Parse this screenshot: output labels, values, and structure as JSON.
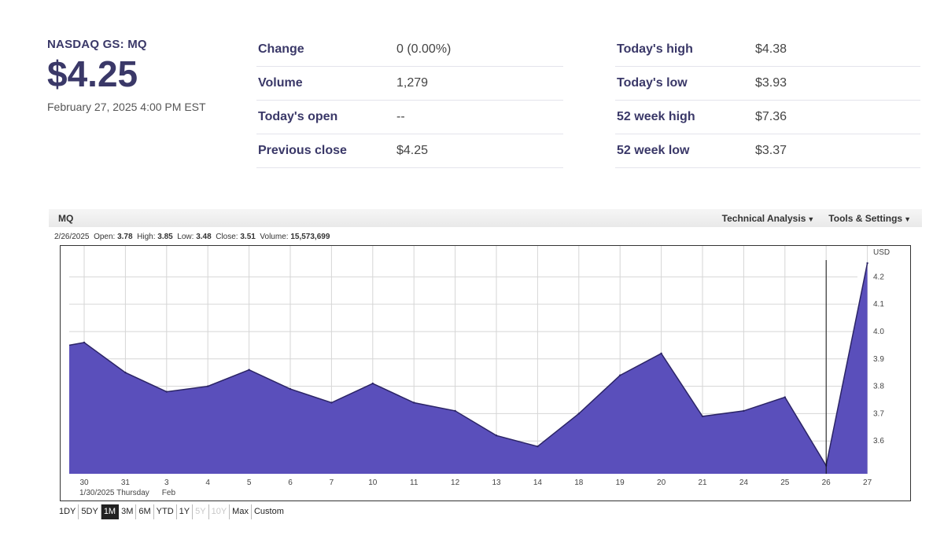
{
  "quote": {
    "exchange": "NASDAQ GS: MQ",
    "price": "$4.25",
    "timestamp": "February 27, 2025 4:00 PM EST"
  },
  "stats_left": [
    {
      "label": "Change",
      "value": "0 (0.00%)"
    },
    {
      "label": "Volume",
      "value": "1,279"
    },
    {
      "label": "Today's open",
      "value": "--"
    },
    {
      "label": "Previous close",
      "value": "$4.25"
    }
  ],
  "stats_right": [
    {
      "label": "Today's high",
      "value": "$4.38"
    },
    {
      "label": "Today's low",
      "value": "$3.93"
    },
    {
      "label": "52 week high",
      "value": "$7.36"
    },
    {
      "label": "52 week low",
      "value": "$3.37"
    }
  ],
  "chart_header": {
    "symbol": "MQ",
    "technical_analysis": "Technical Analysis",
    "tools_settings": "Tools & Settings"
  },
  "ohlc": {
    "date": "2/26/2025",
    "open_label": "Open:",
    "open": "3.78",
    "high_label": "High:",
    "high": "3.85",
    "low_label": "Low:",
    "low": "3.48",
    "close_label": "Close:",
    "close": "3.51",
    "volume_label": "Volume:",
    "volume": "15,573,699"
  },
  "ranges": [
    {
      "label": "1DY",
      "state": "normal"
    },
    {
      "label": "5DY",
      "state": "normal"
    },
    {
      "label": "1M",
      "state": "active"
    },
    {
      "label": "3M",
      "state": "normal"
    },
    {
      "label": "6M",
      "state": "normal"
    },
    {
      "label": "YTD",
      "state": "normal"
    },
    {
      "label": "1Y",
      "state": "normal"
    },
    {
      "label": "5Y",
      "state": "disabled"
    },
    {
      "label": "10Y",
      "state": "disabled"
    },
    {
      "label": "Max",
      "state": "normal"
    },
    {
      "label": "Custom",
      "state": "normal"
    }
  ],
  "chart_data": {
    "type": "area",
    "title": "",
    "xlabel": "",
    "ylabel": "USD",
    "x": [
      "30",
      "31",
      "3",
      "4",
      "5",
      "6",
      "7",
      "10",
      "11",
      "12",
      "13",
      "14",
      "18",
      "19",
      "20",
      "21",
      "24",
      "25",
      "26",
      "27"
    ],
    "values": [
      3.96,
      3.85,
      3.78,
      3.8,
      3.86,
      3.79,
      3.74,
      3.81,
      3.74,
      3.71,
      3.62,
      3.58,
      3.7,
      3.84,
      3.92,
      3.69,
      3.71,
      3.76,
      3.51,
      4.25
    ],
    "first_value": 3.95,
    "ylim": [
      3.48,
      4.29
    ],
    "y_ticks": [
      3.6,
      3.7,
      3.8,
      3.9,
      4.0,
      4.1,
      4.2
    ],
    "x_sublabels": [
      {
        "at": "30",
        "text": "1/30/2025 Thursday"
      },
      {
        "at": "3",
        "text": "Feb"
      }
    ],
    "crosshair_at": "26",
    "fill_color": "#5a4fbb",
    "line_color": "#2b2466",
    "grid": true,
    "legend": "none"
  }
}
